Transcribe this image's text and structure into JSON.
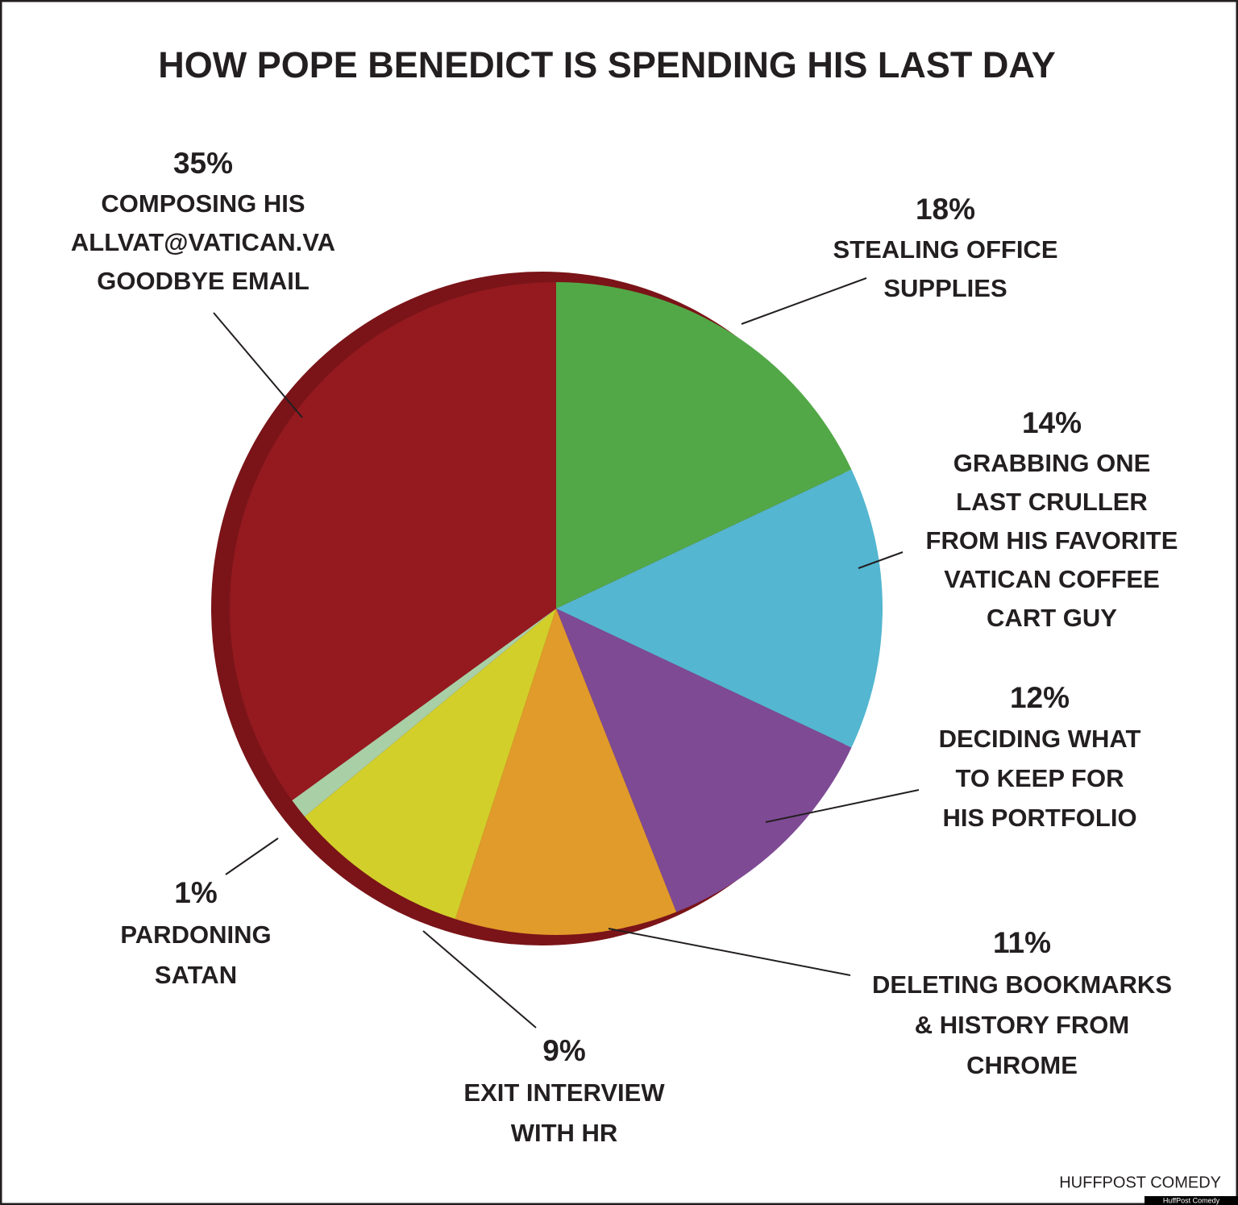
{
  "chart_data": {
    "type": "pie",
    "title": "HOW POPE BENEDICT IS SPENDING HIS LAST DAY",
    "categories": [
      [
        "STEALING OFFICE",
        "SUPPLIES"
      ],
      [
        "GRABBING ONE",
        "LAST CRULLER",
        "FROM HIS FAVORITE",
        "VATICAN COFFEE",
        "CART GUY"
      ],
      [
        "DECIDING WHAT",
        "TO KEEP FOR",
        "HIS PORTFOLIO"
      ],
      [
        "DELETING BOOKMARKS",
        "& HISTORY FROM",
        "CHROME"
      ],
      [
        "EXIT INTERVIEW",
        "WITH HR"
      ],
      [
        "PARDONING",
        "SATAN"
      ],
      [
        "COMPOSING HIS",
        "ALLVAT@VATICAN.VA",
        "GOODBYE EMAIL"
      ]
    ],
    "values": [
      18,
      14,
      12,
      11,
      9,
      1,
      35
    ],
    "value_labels": [
      "18%",
      "14%",
      "12%",
      "11%",
      "9%",
      "1%",
      "35%"
    ],
    "colors": [
      "#52a847",
      "#54b6d0",
      "#7e4a94",
      "#e09b2a",
      "#d2cf2a",
      "#a9cfa6",
      "#941a1f"
    ],
    "source": "HUFFPOST COMEDY",
    "credit": "HuffPost Comedy"
  }
}
